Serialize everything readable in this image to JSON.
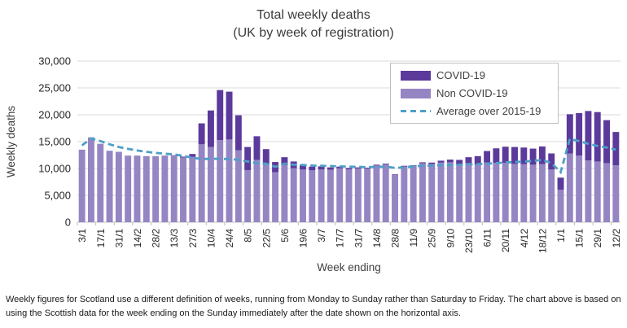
{
  "title": {
    "line1": "Total weekly deaths",
    "line2": "(UK by week of registration)"
  },
  "footnote": "Weekly figures for Scotland use a different definition of weeks, running from Monday to Sunday rather than Saturday to Friday. The chart above is based on using the Scottish data for the week ending on the Sunday immediately after the date shown on the horizontal axis.",
  "chart_data": {
    "type": "bar",
    "stacked": true,
    "title": "Total weekly deaths (UK by week of registration)",
    "xlabel": "Week ending",
    "ylabel": "Weekly deaths",
    "ylim": [
      0,
      30000
    ],
    "ytick_step": 5000,
    "ytick_labels": [
      "0",
      "5,000",
      "10,000",
      "15,000",
      "20,000",
      "25,000",
      "30,000"
    ],
    "label_every": 2,
    "grid": "horizontal",
    "legend_position": "top-right",
    "categories": [
      "3/1",
      "10/1",
      "17/1",
      "24/1",
      "31/1",
      "7/2",
      "14/2",
      "21/2",
      "28/2",
      "6/3",
      "13/3",
      "20/3",
      "27/3",
      "3/4",
      "10/4",
      "17/4",
      "24/4",
      "1/5",
      "8/5",
      "15/5",
      "22/5",
      "29/5",
      "5/6",
      "12/6",
      "19/6",
      "26/6",
      "3/7",
      "10/7",
      "17/7",
      "24/7",
      "31/7",
      "7/8",
      "14/8",
      "21/8",
      "28/8",
      "4/9",
      "11/9",
      "18/9",
      "25/9",
      "2/10",
      "9/10",
      "16/10",
      "23/10",
      "30/10",
      "6/11",
      "13/11",
      "20/11",
      "27/11",
      "4/12",
      "11/12",
      "18/12",
      "25/12",
      "1/1",
      "8/1",
      "15/1",
      "22/1",
      "29/1",
      "5/2",
      "12/2"
    ],
    "series": [
      {
        "name": "COVID-19",
        "color": "#5B3A9B",
        "values": [
          0,
          0,
          0,
          0,
          0,
          0,
          0,
          0,
          0,
          0,
          0,
          150,
          550,
          3900,
          6800,
          9300,
          8900,
          6500,
          4300,
          4400,
          2900,
          1900,
          1500,
          1250,
          900,
          700,
          600,
          420,
          330,
          250,
          220,
          170,
          160,
          160,
          110,
          120,
          110,
          160,
          260,
          360,
          500,
          900,
          1100,
          1550,
          2150,
          2700,
          3000,
          3150,
          3100,
          3000,
          3300,
          3000,
          2250,
          7300,
          7900,
          9200,
          9200,
          8000,
          6200
        ]
      },
      {
        "name": "Non COVID-19",
        "color": "#9585C3",
        "values": [
          13500,
          15800,
          14600,
          13300,
          13100,
          12400,
          12400,
          12300,
          12300,
          12400,
          12500,
          12050,
          12150,
          14500,
          14000,
          15300,
          15400,
          13400,
          9700,
          11600,
          10700,
          9300,
          10600,
          10050,
          9800,
          9650,
          9800,
          9780,
          10020,
          9850,
          9980,
          9980,
          10540,
          10740,
          8790,
          10380,
          10490,
          10990,
          10840,
          11090,
          11150,
          10700,
          11000,
          10750,
          11100,
          11050,
          11050,
          10850,
          10800,
          10700,
          10800,
          9800,
          6050,
          12800,
          12400,
          11500,
          11300,
          11000,
          10600
        ]
      }
    ],
    "line_series": {
      "name": "Average over 2015-19",
      "color": "#4E9FC8",
      "style": "dashed",
      "values": [
        14300,
        15600,
        15100,
        14500,
        14000,
        13650,
        13350,
        13100,
        12900,
        12750,
        12600,
        12350,
        12000,
        11750,
        11800,
        11800,
        11750,
        11600,
        11300,
        11000,
        10900,
        10300,
        10900,
        10700,
        10650,
        10550,
        10500,
        10450,
        10400,
        10350,
        10300,
        10250,
        10300,
        10350,
        10100,
        10200,
        10400,
        10500,
        10550,
        10600,
        10650,
        10700,
        10750,
        10800,
        10900,
        11000,
        11100,
        11200,
        11300,
        11400,
        11600,
        11000,
        9300,
        15500,
        15100,
        14600,
        14200,
        13900,
        13500
      ]
    },
    "colors": {
      "gridline": "#d9d9d9",
      "axis": "#bfbfbf",
      "axis_text": "#262626",
      "label_text": "#3f3f3f",
      "legend_border": "#bfbfbf"
    }
  }
}
